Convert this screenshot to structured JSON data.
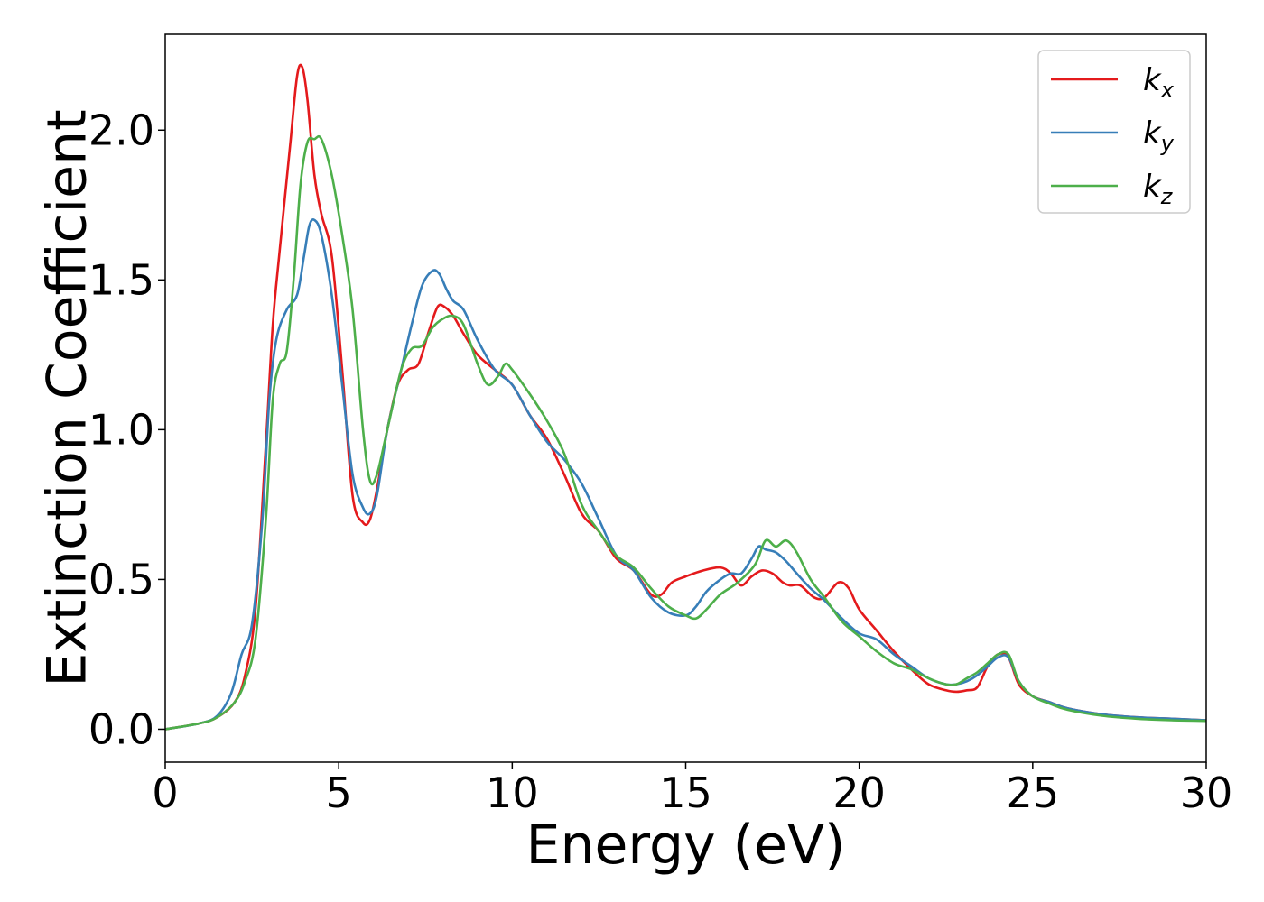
{
  "chart_data": {
    "type": "line",
    "title": "",
    "xlabel": "Energy (eV)",
    "ylabel": "Extinction Coefficient",
    "xlim": [
      0,
      30
    ],
    "ylim": [
      -0.11,
      2.32
    ],
    "xticks": [
      0,
      5,
      10,
      15,
      20,
      25,
      30
    ],
    "xtick_labels": [
      "0",
      "5",
      "10",
      "15",
      "20",
      "25",
      "30"
    ],
    "yticks": [
      0.0,
      0.5,
      1.0,
      1.5,
      2.0
    ],
    "ytick_labels": [
      "0.0",
      "0.5",
      "1.0",
      "1.5",
      "2.0"
    ],
    "grid": false,
    "legend_position": "top-right",
    "series": [
      {
        "name": "k_x",
        "label_main": "k",
        "label_sub": "x",
        "color": "#e41a1c",
        "x": [
          0,
          1,
          1.5,
          2,
          2.3,
          2.6,
          2.9,
          3.1,
          3.3,
          3.6,
          3.8,
          3.95,
          4.1,
          4.3,
          4.5,
          4.8,
          5.1,
          5.4,
          5.7,
          5.9,
          6.1,
          6.4,
          6.7,
          7.0,
          7.3,
          7.6,
          7.85,
          8.05,
          8.3,
          8.6,
          9.0,
          9.5,
          10.0,
          10.5,
          11.0,
          11.5,
          12.0,
          12.5,
          13.0,
          13.5,
          14.0,
          14.3,
          14.6,
          15.0,
          15.5,
          16.0,
          16.3,
          16.6,
          16.9,
          17.2,
          17.5,
          17.8,
          18.0,
          18.3,
          18.7,
          19.0,
          19.4,
          19.7,
          20.0,
          20.5,
          21.0,
          21.5,
          22.0,
          22.5,
          22.8,
          23.1,
          23.4,
          23.7,
          24.0,
          24.3,
          24.6,
          25.0,
          25.5,
          26.0,
          27.0,
          28.0,
          29.0,
          30.0
        ],
        "y": [
          0.0,
          0.02,
          0.04,
          0.09,
          0.18,
          0.4,
          0.95,
          1.35,
          1.6,
          1.95,
          2.18,
          2.21,
          2.1,
          1.85,
          1.72,
          1.58,
          1.2,
          0.78,
          0.69,
          0.7,
          0.8,
          1.0,
          1.15,
          1.2,
          1.22,
          1.33,
          1.41,
          1.41,
          1.38,
          1.32,
          1.25,
          1.2,
          1.15,
          1.05,
          0.97,
          0.85,
          0.72,
          0.66,
          0.57,
          0.53,
          0.45,
          0.45,
          0.49,
          0.51,
          0.53,
          0.54,
          0.52,
          0.48,
          0.51,
          0.53,
          0.52,
          0.49,
          0.48,
          0.48,
          0.44,
          0.44,
          0.49,
          0.47,
          0.4,
          0.33,
          0.26,
          0.2,
          0.15,
          0.13,
          0.125,
          0.13,
          0.14,
          0.21,
          0.25,
          0.24,
          0.15,
          0.11,
          0.09,
          0.07,
          0.05,
          0.04,
          0.035,
          0.03
        ]
      },
      {
        "name": "k_y",
        "label_main": "k",
        "label_sub": "y",
        "color": "#377eb8",
        "x": [
          0,
          1,
          1.5,
          1.9,
          2.2,
          2.5,
          2.8,
          3.0,
          3.2,
          3.5,
          3.8,
          4.0,
          4.15,
          4.3,
          4.5,
          4.8,
          5.1,
          5.4,
          5.7,
          5.9,
          6.1,
          6.4,
          6.8,
          7.1,
          7.4,
          7.7,
          7.9,
          8.1,
          8.3,
          8.6,
          9.0,
          9.5,
          10.0,
          10.5,
          11.0,
          11.5,
          12.0,
          12.5,
          13.0,
          13.5,
          14.0,
          14.5,
          15.0,
          15.3,
          15.6,
          16.0,
          16.3,
          16.6,
          16.9,
          17.1,
          17.3,
          17.6,
          17.9,
          18.2,
          18.6,
          19.0,
          19.5,
          20.0,
          20.5,
          21.0,
          21.5,
          22.0,
          22.5,
          22.8,
          23.1,
          23.4,
          23.7,
          24.0,
          24.3,
          24.6,
          25.0,
          25.5,
          26.0,
          27.0,
          28.0,
          29.0,
          30.0
        ],
        "y": [
          0.0,
          0.02,
          0.045,
          0.12,
          0.25,
          0.35,
          0.7,
          1.1,
          1.3,
          1.4,
          1.45,
          1.58,
          1.68,
          1.7,
          1.65,
          1.45,
          1.15,
          0.85,
          0.74,
          0.72,
          0.78,
          1.0,
          1.2,
          1.35,
          1.48,
          1.53,
          1.52,
          1.47,
          1.43,
          1.4,
          1.3,
          1.2,
          1.15,
          1.05,
          0.96,
          0.9,
          0.82,
          0.7,
          0.58,
          0.53,
          0.44,
          0.39,
          0.38,
          0.41,
          0.46,
          0.5,
          0.52,
          0.52,
          0.57,
          0.61,
          0.6,
          0.59,
          0.56,
          0.52,
          0.47,
          0.43,
          0.37,
          0.32,
          0.3,
          0.25,
          0.21,
          0.17,
          0.15,
          0.15,
          0.16,
          0.18,
          0.21,
          0.24,
          0.24,
          0.16,
          0.11,
          0.09,
          0.07,
          0.05,
          0.04,
          0.035,
          0.03
        ]
      },
      {
        "name": "k_z",
        "label_main": "k",
        "label_sub": "z",
        "color": "#4daf4a",
        "x": [
          0,
          1,
          1.5,
          2,
          2.3,
          2.6,
          2.9,
          3.1,
          3.3,
          3.5,
          3.7,
          3.9,
          4.1,
          4.3,
          4.5,
          4.8,
          5.1,
          5.4,
          5.7,
          5.9,
          6.1,
          6.4,
          6.8,
          7.1,
          7.4,
          7.7,
          8.0,
          8.3,
          8.6,
          9.0,
          9.3,
          9.6,
          9.8,
          10.0,
          10.5,
          11.0,
          11.5,
          12.0,
          12.5,
          13.0,
          13.5,
          14.0,
          14.5,
          15.0,
          15.3,
          15.6,
          16.0,
          16.5,
          17.0,
          17.3,
          17.6,
          17.9,
          18.2,
          18.6,
          19.0,
          19.5,
          20.0,
          20.5,
          21.0,
          21.5,
          22.0,
          22.5,
          22.8,
          23.1,
          23.4,
          23.7,
          24.0,
          24.3,
          24.6,
          25.0,
          25.5,
          26.0,
          27.0,
          28.0,
          29.0,
          30.0
        ],
        "y": [
          0.0,
          0.02,
          0.04,
          0.09,
          0.16,
          0.3,
          0.7,
          1.1,
          1.22,
          1.26,
          1.5,
          1.82,
          1.96,
          1.97,
          1.97,
          1.85,
          1.65,
          1.4,
          1.0,
          0.83,
          0.85,
          1.0,
          1.2,
          1.27,
          1.28,
          1.34,
          1.37,
          1.38,
          1.35,
          1.22,
          1.15,
          1.18,
          1.22,
          1.2,
          1.12,
          1.03,
          0.92,
          0.75,
          0.66,
          0.58,
          0.54,
          0.47,
          0.41,
          0.38,
          0.37,
          0.4,
          0.45,
          0.49,
          0.55,
          0.63,
          0.61,
          0.63,
          0.59,
          0.5,
          0.44,
          0.36,
          0.31,
          0.26,
          0.22,
          0.2,
          0.17,
          0.15,
          0.15,
          0.17,
          0.19,
          0.22,
          0.25,
          0.25,
          0.16,
          0.11,
          0.085,
          0.065,
          0.045,
          0.035,
          0.03,
          0.028
        ]
      }
    ]
  }
}
